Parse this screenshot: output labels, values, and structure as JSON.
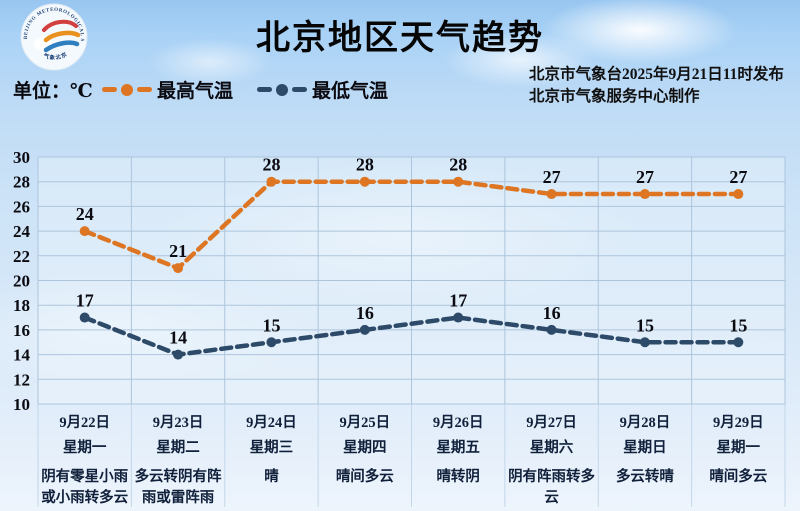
{
  "header": {
    "title": "北京地区天气趋势",
    "unit_label": "单位：℃",
    "publisher_line1": "北京市气象台2025年9月21日11时发布",
    "publisher_line2": "北京市气象服务中心制作",
    "logo": {
      "ring_text_top": "BEIJING METEOROLOGICAL SERVICE",
      "ring_text_bottom": "气象北京"
    }
  },
  "legend": [
    {
      "label": "最高气温",
      "color": "#dd7522"
    },
    {
      "label": "最低气温",
      "color": "#2d4a69"
    }
  ],
  "chart_data": {
    "type": "line",
    "title": "北京地区天气趋势",
    "unit": "℃",
    "ylim": [
      10,
      30
    ],
    "ytick_step": 2,
    "grid": true,
    "legend_position": "top-left",
    "categories": [
      "9月22日",
      "9月23日",
      "9月24日",
      "9月25日",
      "9月26日",
      "9月27日",
      "9月28日",
      "9月29日"
    ],
    "weekdays": [
      "星期一",
      "星期二",
      "星期三",
      "星期四",
      "星期五",
      "星期六",
      "星期日",
      "星期一"
    ],
    "weather": [
      "阴有零星小雨或小雨转多云",
      "多云转阴有阵雨或雷阵雨",
      "晴",
      "晴间多云",
      "晴转阴",
      "阴有阵雨转多云",
      "多云转晴",
      "晴间多云"
    ],
    "weather_lines": [
      [
        "阴有零星小雨",
        "或小雨转多云"
      ],
      [
        "多云转阴有阵",
        "雨或雷阵雨"
      ],
      [
        "晴"
      ],
      [
        "晴间多云"
      ],
      [
        "晴转阴"
      ],
      [
        "阴有阵雨转多",
        "云"
      ],
      [
        "多云转晴"
      ],
      [
        "晴间多云"
      ]
    ],
    "series": [
      {
        "name": "最高气温",
        "color": "#dd7522",
        "values": [
          24,
          21,
          28,
          28,
          28,
          27,
          27,
          27
        ]
      },
      {
        "name": "最低气温",
        "color": "#2d4a69",
        "values": [
          17,
          14,
          15,
          16,
          17,
          16,
          15,
          15
        ]
      }
    ]
  }
}
